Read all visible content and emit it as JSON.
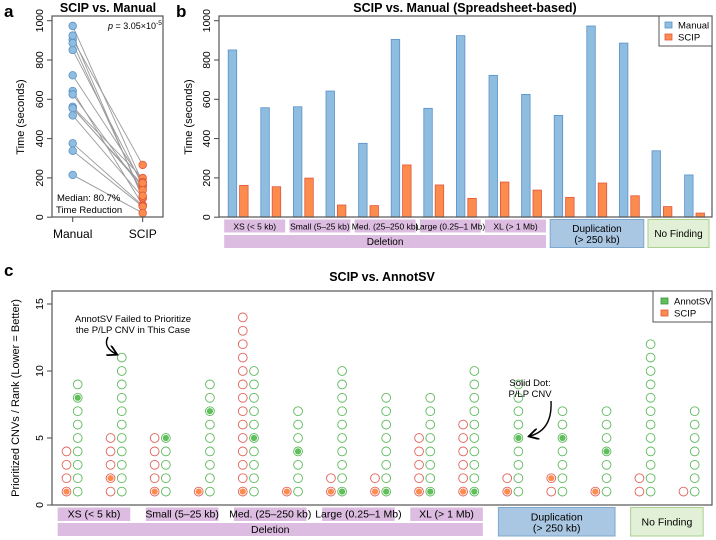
{
  "figure": {
    "panel_letters": {
      "a": "a",
      "b": "b",
      "c": "c"
    },
    "colors": {
      "manual_fill": "#8fbde0",
      "manual_stroke": "#5a91c8",
      "manual_text": "#4f86c6",
      "scip_fill": "#fc8c4e",
      "scip_stroke": "#e2553b",
      "scip_text": "#e2453a",
      "annotsv_stroke": "#5cb85c",
      "annotsv_fill": "#5fbf5a",
      "scip_ring": "#e0605a",
      "deletion_box": "#dcbce0",
      "duplication_box": "#a9c6e2",
      "duplication_border": "#7fa8cf",
      "nofinding_box": "#e1f0d6",
      "nofinding_border": "#a9d18f",
      "pair_line": "#9a9a9a"
    }
  },
  "chart_data": [
    {
      "id": "a",
      "type": "scatter",
      "title": "SCIP vs. Manual",
      "xlabel": "",
      "ylabel": "Time (seconds)",
      "ylim": [
        0,
        1000
      ],
      "yticks": [
        0,
        200,
        400,
        600,
        800,
        1000
      ],
      "categories": [
        "Manual",
        "SCIP"
      ],
      "paired": true,
      "series": [
        {
          "name": "Manual",
          "values": [
            851,
            557,
            562,
            642,
            376,
            905,
            554,
            924,
            722,
            625,
            518,
            973,
            886,
            338,
            215
          ]
        },
        {
          "name": "SCIP",
          "values": [
            162,
            155,
            199,
            62,
            59,
            266,
            164,
            96,
            179,
            138,
            101,
            174,
            109,
            54,
            21
          ]
        }
      ],
      "annotations": {
        "p_value_prefix": "p",
        "p_value_text": " = 3.05×10",
        "p_value_exp": "-5",
        "median_line1": "Median: 80.7%",
        "median_line2": "Time Reduction"
      }
    },
    {
      "id": "b",
      "type": "bar",
      "title": "SCIP vs. Manual (Spreadsheet-based)",
      "xlabel": "",
      "ylabel": "Time (seconds)",
      "ylim": [
        0,
        1000
      ],
      "yticks": [
        0,
        200,
        400,
        600,
        800,
        1000
      ],
      "legend": {
        "position": "top-right",
        "entries": [
          "Manual",
          "SCIP"
        ]
      },
      "cases": 15,
      "series": [
        {
          "name": "Manual",
          "values": [
            851,
            557,
            562,
            642,
            376,
            905,
            554,
            924,
            722,
            625,
            518,
            973,
            886,
            338,
            215
          ]
        },
        {
          "name": "SCIP",
          "values": [
            162,
            155,
            199,
            62,
            59,
            266,
            164,
            96,
            179,
            138,
            101,
            174,
            109,
            54,
            21
          ]
        }
      ],
      "subgroups": [
        {
          "label": "XS (< 5 kb)",
          "cases": [
            1,
            2
          ]
        },
        {
          "label": "Small (5–25 kb)",
          "cases": [
            3,
            4
          ]
        },
        {
          "label": "Med. (25–250 kb)",
          "cases": [
            5,
            6
          ]
        },
        {
          "label": "Large (0.25–1 Mb)",
          "cases": [
            7,
            8
          ]
        },
        {
          "label": "XL (> 1 Mb)",
          "cases": [
            9,
            10
          ]
        }
      ],
      "groups": [
        {
          "label": "Deletion",
          "cases": [
            1,
            10
          ],
          "kind": "deletion"
        },
        {
          "label": "Duplication",
          "label2": "(> 250 kb)",
          "cases": [
            11,
            13
          ],
          "kind": "duplication"
        },
        {
          "label": "No Finding",
          "cases": [
            14,
            15
          ],
          "kind": "nofinding"
        }
      ]
    },
    {
      "id": "c",
      "type": "scatter",
      "title": "SCIP vs. AnnotSV",
      "xlabel": "",
      "ylabel": "Prioritized CNVs / Rank (Lower = Better)",
      "ylim": [
        0,
        15
      ],
      "yticks": [
        0,
        5,
        10,
        15
      ],
      "legend": {
        "position": "top-right",
        "entries": [
          "AnnotSV",
          "SCIP"
        ]
      },
      "cases": [
        {
          "scip_count": 4,
          "scip_hit": 1,
          "annotsv_count": 9,
          "annotsv_hit": 8
        },
        {
          "scip_count": 5,
          "scip_hit": 2,
          "annotsv_count": 11,
          "annotsv_hit": null
        },
        {
          "scip_count": 5,
          "scip_hit": 1,
          "annotsv_count": 5,
          "annotsv_hit": 5
        },
        {
          "scip_count": 1,
          "scip_hit": 1,
          "annotsv_count": 9,
          "annotsv_hit": 7
        },
        {
          "scip_count": 14,
          "scip_hit": 1,
          "annotsv_count": 10,
          "annotsv_hit": 5
        },
        {
          "scip_count": 1,
          "scip_hit": 1,
          "annotsv_count": 7,
          "annotsv_hit": 4
        },
        {
          "scip_count": 2,
          "scip_hit": 1,
          "annotsv_count": 10,
          "annotsv_hit": 1
        },
        {
          "scip_count": 2,
          "scip_hit": 1,
          "annotsv_count": 8,
          "annotsv_hit": 1
        },
        {
          "scip_count": 5,
          "scip_hit": 1,
          "annotsv_count": 8,
          "annotsv_hit": 1
        },
        {
          "scip_count": 6,
          "scip_hit": 1,
          "annotsv_count": 10,
          "annotsv_hit": 1
        },
        {
          "scip_count": 2,
          "scip_hit": 1,
          "annotsv_count": 9,
          "annotsv_hit": 5
        },
        {
          "scip_count": 2,
          "scip_hit": 2,
          "annotsv_count": 7,
          "annotsv_hit": 5
        },
        {
          "scip_count": 1,
          "scip_hit": 1,
          "annotsv_count": 7,
          "annotsv_hit": 4
        },
        {
          "scip_count": 2,
          "scip_hit": null,
          "annotsv_count": 12,
          "annotsv_hit": null
        },
        {
          "scip_count": 1,
          "scip_hit": null,
          "annotsv_count": 7,
          "annotsv_hit": null
        }
      ],
      "subgroups": [
        {
          "label": "XS (< 5 kb)",
          "cases": [
            1,
            2
          ]
        },
        {
          "label": "Small (5–25 kb)",
          "cases": [
            3,
            4
          ]
        },
        {
          "label": "Med. (25–250 kb)",
          "cases": [
            5,
            6
          ]
        },
        {
          "label": "Large (0.25–1 Mb)",
          "cases": [
            7,
            8
          ]
        },
        {
          "label": "XL (> 1 Mb)",
          "cases": [
            9,
            10
          ]
        }
      ],
      "groups": [
        {
          "label": "Deletion",
          "cases": [
            1,
            10
          ],
          "kind": "deletion"
        },
        {
          "label": "Duplication",
          "label2": "(> 250 kb)",
          "cases": [
            11,
            13
          ],
          "kind": "duplication"
        },
        {
          "label": "No Finding",
          "cases": [
            14,
            15
          ],
          "kind": "nofinding"
        }
      ],
      "annotations": {
        "failed_line1": "AnnotSV Failed to Prioritize",
        "failed_line2": "the P/LP CNV in This Case",
        "failed_case": 2,
        "solid_line1": "Solid Dot:",
        "solid_line2": "P/LP CNV",
        "solid_case": 11
      }
    }
  ]
}
